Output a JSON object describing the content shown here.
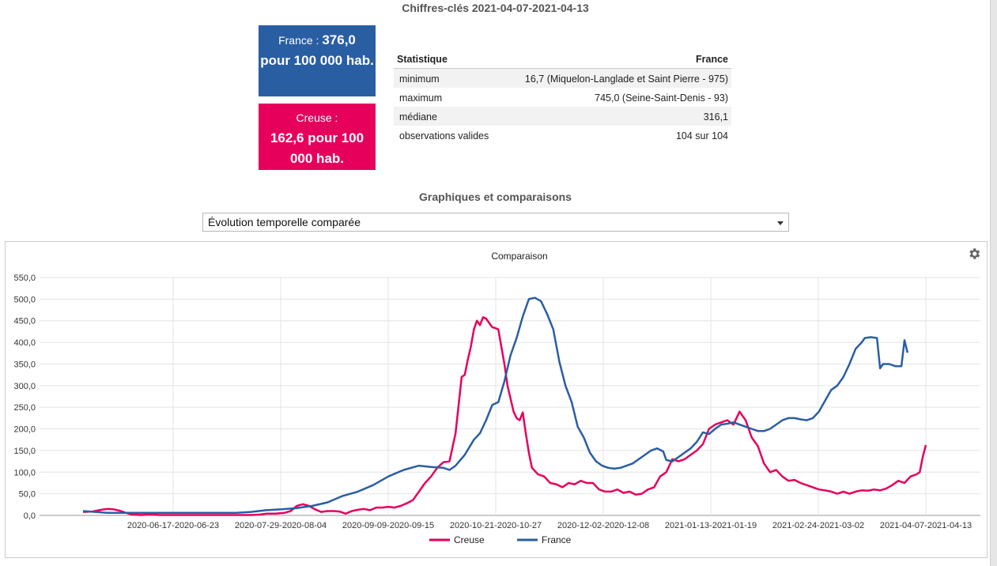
{
  "header": {
    "title": "Chiffres-clés 2021-04-07-2021-04-13"
  },
  "kpis": {
    "france": {
      "prefix": "France : ",
      "value": "376,0",
      "suffix": "pour 100 000 hab.",
      "color": "#2a5ea3"
    },
    "creuse": {
      "prefix": "Creuse :",
      "value": "162,6 pour 100 000 hab.",
      "color": "#e6005c"
    }
  },
  "stats_table": {
    "headers": [
      "Statistique",
      "France"
    ],
    "rows": [
      {
        "label": "minimum",
        "value": "16,7 (Miquelon-Langlade et Saint Pierre - 975)"
      },
      {
        "label": "maximum",
        "value": "745,0 (Seine-Saint-Denis - 93)"
      },
      {
        "label": "médiane",
        "value": "316,1"
      },
      {
        "label": "observations valides",
        "value": "104 sur 104"
      }
    ]
  },
  "section": {
    "title": "Graphiques et comparaisons"
  },
  "chart_select": {
    "value": "Évolution temporelle comparée"
  },
  "chart_data": {
    "type": "line",
    "title": "Comparaison",
    "ylim": [
      0,
      550
    ],
    "yticks": [
      "0,0",
      "50,0",
      "100,0",
      "150,0",
      "200,0",
      "250,0",
      "300,0",
      "350,0",
      "400,0",
      "450,0",
      "500,0",
      "550,0"
    ],
    "xticks": [
      "2020-06-17-2020-06-23",
      "2020-07-29-2020-08-04",
      "2020-09-09-2020-09-15",
      "2020-10-21-2020-10-27",
      "2020-12-02-2020-12-08",
      "2021-01-13-2021-01-19",
      "2021-02-24-2021-03-02",
      "2021-04-07-2021-04-13"
    ],
    "grid": true,
    "legend_position": "bottom",
    "series": [
      {
        "name": "Creuse",
        "color": "#e6005c",
        "points": [
          [
            0,
            8
          ],
          [
            3,
            9
          ],
          [
            6,
            13
          ],
          [
            8,
            15
          ],
          [
            10,
            14
          ],
          [
            12,
            11
          ],
          [
            14,
            6
          ],
          [
            16,
            2
          ],
          [
            19,
            1
          ],
          [
            22,
            2
          ],
          [
            25,
            1
          ],
          [
            30,
            1
          ],
          [
            35,
            1
          ],
          [
            40,
            1
          ],
          [
            45,
            1
          ],
          [
            50,
            1
          ],
          [
            55,
            1
          ],
          [
            58,
            2
          ],
          [
            60,
            4
          ],
          [
            63,
            4
          ],
          [
            66,
            6
          ],
          [
            68,
            10
          ],
          [
            70,
            22
          ],
          [
            72,
            26
          ],
          [
            74,
            22
          ],
          [
            76,
            14
          ],
          [
            78,
            8
          ],
          [
            80,
            10
          ],
          [
            82,
            10
          ],
          [
            84,
            9
          ],
          [
            86,
            4
          ],
          [
            88,
            10
          ],
          [
            90,
            13
          ],
          [
            92,
            15
          ],
          [
            94,
            12
          ],
          [
            96,
            18
          ],
          [
            98,
            18
          ],
          [
            100,
            20
          ],
          [
            102,
            18
          ],
          [
            104,
            22
          ],
          [
            106,
            28
          ],
          [
            108,
            35
          ],
          [
            110,
            55
          ],
          [
            112,
            75
          ],
          [
            114,
            90
          ],
          [
            116,
            110
          ],
          [
            118,
            123
          ],
          [
            120,
            125
          ],
          [
            122,
            190
          ],
          [
            124,
            320
          ],
          [
            125,
            325
          ],
          [
            126,
            360
          ],
          [
            127,
            390
          ],
          [
            128,
            430
          ],
          [
            129,
            450
          ],
          [
            130,
            440
          ],
          [
            131,
            458
          ],
          [
            132,
            455
          ],
          [
            133,
            445
          ],
          [
            134,
            435
          ],
          [
            135,
            433
          ],
          [
            136,
            430
          ],
          [
            137,
            390
          ],
          [
            138,
            350
          ],
          [
            139,
            300
          ],
          [
            140,
            270
          ],
          [
            141,
            240
          ],
          [
            142,
            225
          ],
          [
            143,
            220
          ],
          [
            144,
            238
          ],
          [
            145,
            190
          ],
          [
            146,
            145
          ],
          [
            147,
            110
          ],
          [
            149,
            95
          ],
          [
            151,
            90
          ],
          [
            153,
            75
          ],
          [
            155,
            72
          ],
          [
            157,
            65
          ],
          [
            159,
            75
          ],
          [
            161,
            72
          ],
          [
            163,
            80
          ],
          [
            165,
            75
          ],
          [
            167,
            75
          ],
          [
            169,
            60
          ],
          [
            171,
            55
          ],
          [
            173,
            55
          ],
          [
            175,
            60
          ],
          [
            177,
            52
          ],
          [
            179,
            55
          ],
          [
            181,
            48
          ],
          [
            183,
            50
          ],
          [
            185,
            60
          ],
          [
            187,
            65
          ],
          [
            189,
            90
          ],
          [
            191,
            100
          ],
          [
            193,
            130
          ],
          [
            195,
            125
          ],
          [
            197,
            130
          ],
          [
            199,
            140
          ],
          [
            201,
            150
          ],
          [
            203,
            165
          ],
          [
            205,
            200
          ],
          [
            207,
            210
          ],
          [
            209,
            215
          ],
          [
            211,
            220
          ],
          [
            213,
            210
          ],
          [
            215,
            240
          ],
          [
            217,
            220
          ],
          [
            219,
            180
          ],
          [
            221,
            160
          ],
          [
            223,
            120
          ],
          [
            225,
            100
          ],
          [
            227,
            105
          ],
          [
            229,
            90
          ],
          [
            231,
            80
          ],
          [
            233,
            82
          ],
          [
            235,
            75
          ],
          [
            237,
            70
          ],
          [
            239,
            65
          ],
          [
            241,
            60
          ],
          [
            243,
            58
          ],
          [
            245,
            55
          ],
          [
            247,
            50
          ],
          [
            249,
            55
          ],
          [
            251,
            50
          ],
          [
            253,
            55
          ],
          [
            255,
            58
          ],
          [
            257,
            57
          ],
          [
            259,
            60
          ],
          [
            261,
            58
          ],
          [
            263,
            62
          ],
          [
            265,
            70
          ],
          [
            267,
            80
          ],
          [
            269,
            75
          ],
          [
            271,
            90
          ],
          [
            273,
            95
          ],
          [
            274,
            100
          ],
          [
            275,
            135
          ],
          [
            276,
            162.6
          ]
        ]
      },
      {
        "name": "France",
        "color": "#2a5ea3",
        "points": [
          [
            0,
            10
          ],
          [
            4,
            8
          ],
          [
            8,
            6
          ],
          [
            12,
            6
          ],
          [
            20,
            6
          ],
          [
            30,
            6
          ],
          [
            40,
            6
          ],
          [
            50,
            6
          ],
          [
            55,
            8
          ],
          [
            60,
            12
          ],
          [
            65,
            14
          ],
          [
            70,
            17
          ],
          [
            75,
            22
          ],
          [
            80,
            30
          ],
          [
            85,
            45
          ],
          [
            90,
            55
          ],
          [
            95,
            70
          ],
          [
            100,
            90
          ],
          [
            105,
            105
          ],
          [
            110,
            115
          ],
          [
            114,
            112
          ],
          [
            118,
            110
          ],
          [
            120,
            105
          ],
          [
            122,
            115
          ],
          [
            125,
            140
          ],
          [
            128,
            175
          ],
          [
            130,
            190
          ],
          [
            132,
            220
          ],
          [
            134,
            255
          ],
          [
            136,
            262
          ],
          [
            138,
            310
          ],
          [
            140,
            370
          ],
          [
            142,
            410
          ],
          [
            144,
            460
          ],
          [
            146,
            500
          ],
          [
            148,
            503
          ],
          [
            150,
            495
          ],
          [
            152,
            465
          ],
          [
            154,
            430
          ],
          [
            156,
            355
          ],
          [
            158,
            300
          ],
          [
            160,
            262
          ],
          [
            162,
            205
          ],
          [
            164,
            180
          ],
          [
            166,
            145
          ],
          [
            168,
            125
          ],
          [
            170,
            115
          ],
          [
            172,
            110
          ],
          [
            174,
            108
          ],
          [
            176,
            110
          ],
          [
            178,
            115
          ],
          [
            180,
            120
          ],
          [
            182,
            130
          ],
          [
            184,
            140
          ],
          [
            186,
            150
          ],
          [
            188,
            155
          ],
          [
            190,
            148
          ],
          [
            191,
            128
          ],
          [
            193,
            125
          ],
          [
            195,
            135
          ],
          [
            197,
            145
          ],
          [
            199,
            155
          ],
          [
            201,
            170
          ],
          [
            203,
            192
          ],
          [
            205,
            188
          ],
          [
            207,
            200
          ],
          [
            209,
            210
          ],
          [
            211,
            212
          ],
          [
            213,
            215
          ],
          [
            215,
            210
          ],
          [
            217,
            205
          ],
          [
            219,
            200
          ],
          [
            221,
            195
          ],
          [
            223,
            195
          ],
          [
            225,
            200
          ],
          [
            227,
            210
          ],
          [
            229,
            220
          ],
          [
            231,
            225
          ],
          [
            233,
            225
          ],
          [
            235,
            222
          ],
          [
            237,
            220
          ],
          [
            239,
            225
          ],
          [
            241,
            240
          ],
          [
            243,
            265
          ],
          [
            245,
            290
          ],
          [
            247,
            300
          ],
          [
            249,
            320
          ],
          [
            251,
            350
          ],
          [
            253,
            385
          ],
          [
            255,
            400
          ],
          [
            256,
            410
          ],
          [
            258,
            412
          ],
          [
            260,
            410
          ],
          [
            261,
            340
          ],
          [
            262,
            350
          ],
          [
            264,
            350
          ],
          [
            266,
            345
          ],
          [
            268,
            345
          ],
          [
            269,
            405
          ],
          [
            270,
            376
          ]
        ]
      }
    ]
  }
}
